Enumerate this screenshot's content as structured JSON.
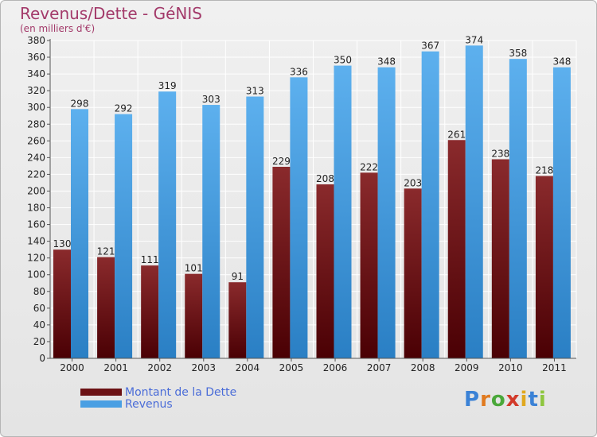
{
  "title": "Revenus/Dette - GéNIS",
  "subtitle": "(en milliers d'€)",
  "logo_letters": [
    "P",
    "r",
    "o",
    "x",
    "i",
    "t",
    "i"
  ],
  "logo_colors": [
    "#3b82d6",
    "#e07a1f",
    "#4aa83a",
    "#d23a2a",
    "#e0a81f",
    "#3b82d6",
    "#8ec63f"
  ],
  "legend": [
    {
      "label": "Montant de la Dette",
      "color": "#6b1114"
    },
    {
      "label": "Revenus",
      "color": "#4a9fe3"
    }
  ],
  "chart_data": {
    "type": "bar",
    "categories": [
      "2000",
      "2001",
      "2002",
      "2003",
      "2004",
      "2005",
      "2006",
      "2007",
      "2008",
      "2009",
      "2010",
      "2011"
    ],
    "series": [
      {
        "name": "Montant de la Dette",
        "color": "#7a1c1e",
        "values": [
          130,
          121,
          111,
          101,
          91,
          229,
          208,
          222,
          203,
          261,
          238,
          218
        ]
      },
      {
        "name": "Revenus",
        "color": "#4a9fe3",
        "values": [
          298,
          292,
          319,
          303,
          313,
          336,
          350,
          348,
          367,
          374,
          358,
          348
        ]
      }
    ],
    "ylim": [
      0,
      380
    ],
    "ytick_step": 20,
    "grid": true
  }
}
